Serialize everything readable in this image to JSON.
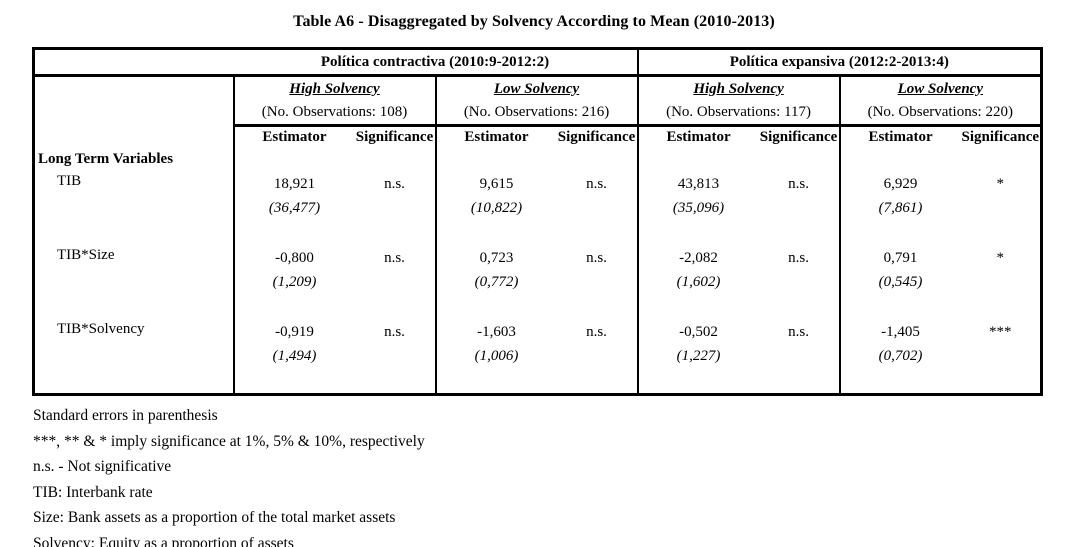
{
  "title": "Table A6 - Disaggregated by Solvency According to Mean (2010-2013)",
  "table": {
    "policy_groups": [
      {
        "label": "Política contractiva (2010:9-2012:2)"
      },
      {
        "label": "Política expansiva (2012:2-2013:4)"
      }
    ],
    "solvency_groups": [
      {
        "label": "High Solvency",
        "observations": "(No. Observations: 108)"
      },
      {
        "label": "Low Solvency",
        "observations": "(No. Observations: 216)"
      },
      {
        "label": "High Solvency",
        "observations": "(No. Observations: 117)"
      },
      {
        "label": "Low Solvency",
        "observations": "(No. Observations: 220)"
      }
    ],
    "col_headers": {
      "estimator": "Estimator",
      "significance": "Significance"
    },
    "section_label": "Long Term Variables",
    "rows": [
      {
        "variable": "TIB",
        "cells": [
          {
            "estimator": "18,921",
            "stderr": "(36,477)",
            "significance": "n.s."
          },
          {
            "estimator": "9,615",
            "stderr": "(10,822)",
            "significance": "n.s."
          },
          {
            "estimator": "43,813",
            "stderr": "(35,096)",
            "significance": "n.s."
          },
          {
            "estimator": "6,929",
            "stderr": "(7,861)",
            "significance": "*"
          }
        ]
      },
      {
        "variable": "TIB*Size",
        "cells": [
          {
            "estimator": "-0,800",
            "stderr": "(1,209)",
            "significance": "n.s."
          },
          {
            "estimator": "0,723",
            "stderr": "(0,772)",
            "significance": "n.s."
          },
          {
            "estimator": "-2,082",
            "stderr": "(1,602)",
            "significance": "n.s."
          },
          {
            "estimator": "0,791",
            "stderr": "(0,545)",
            "significance": "*"
          }
        ]
      },
      {
        "variable": "TIB*Solvency",
        "cells": [
          {
            "estimator": "-0,919",
            "stderr": "(1,494)",
            "significance": "n.s."
          },
          {
            "estimator": "-1,603",
            "stderr": "(1,006)",
            "significance": "n.s."
          },
          {
            "estimator": "-0,502",
            "stderr": "(1,227)",
            "significance": "n.s."
          },
          {
            "estimator": "-1,405",
            "stderr": "(0,702)",
            "significance": "***"
          }
        ]
      }
    ]
  },
  "footnotes": [
    "Standard errors in parenthesis",
    "***, ** & * imply significance at 1%, 5% & 10%, respectively",
    "n.s. - Not significative",
    "TIB: Interbank rate",
    "Size: Bank assets as a proportion of the total market assets",
    "Solvency: Equity as a proportion of assets"
  ]
}
